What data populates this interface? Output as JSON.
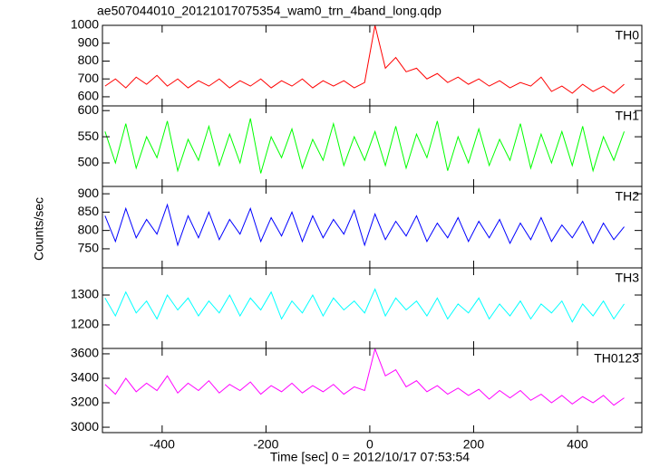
{
  "title": "ae507044010_20121017075354_wam0_trn_4band_long.qdp",
  "x_label": "Time [sec] 0 = 2012/10/17 07:53:54",
  "y_label": "Counts/sec",
  "xlim": [
    -515,
    524
  ],
  "xticks": [
    -400,
    -200,
    0,
    200,
    400
  ],
  "x": [
    -510,
    -490,
    -470,
    -450,
    -430,
    -410,
    -390,
    -370,
    -350,
    -330,
    -310,
    -290,
    -270,
    -250,
    -230,
    -210,
    -190,
    -170,
    -150,
    -130,
    -110,
    -90,
    -70,
    -50,
    -30,
    -10,
    10,
    30,
    50,
    70,
    90,
    110,
    130,
    150,
    170,
    190,
    210,
    230,
    250,
    270,
    290,
    310,
    330,
    350,
    370,
    390,
    410,
    430,
    450,
    470,
    490
  ],
  "chart_data": [
    {
      "type": "line",
      "label": "TH0",
      "color": "#ff0000",
      "ylim": [
        549,
        1000
      ],
      "yticks": [
        600,
        700,
        800,
        900,
        1000
      ],
      "values": [
        660,
        700,
        650,
        710,
        670,
        720,
        660,
        700,
        650,
        690,
        660,
        700,
        650,
        690,
        660,
        700,
        650,
        690,
        660,
        700,
        650,
        690,
        660,
        690,
        650,
        680,
        1000,
        760,
        820,
        740,
        760,
        700,
        730,
        680,
        710,
        670,
        700,
        660,
        690,
        650,
        680,
        660,
        710,
        630,
        660,
        620,
        670,
        630,
        660,
        620,
        670
      ]
    },
    {
      "type": "line",
      "label": "TH1",
      "color": "#00ff00",
      "ylim": [
        455,
        609
      ],
      "yticks": [
        500,
        550,
        600
      ],
      "values": [
        560,
        500,
        575,
        490,
        550,
        510,
        580,
        485,
        545,
        505,
        570,
        495,
        555,
        500,
        585,
        480,
        550,
        510,
        565,
        490,
        545,
        505,
        575,
        495,
        550,
        505,
        560,
        495,
        570,
        490,
        555,
        510,
        580,
        485,
        550,
        500,
        565,
        495,
        545,
        505,
        575,
        490,
        555,
        500,
        560,
        495,
        570,
        485,
        550,
        505,
        560
      ]
    },
    {
      "type": "line",
      "label": "TH2",
      "color": "#0000ff",
      "ylim": [
        698,
        920
      ],
      "yticks": [
        750,
        800,
        850,
        900
      ],
      "values": [
        840,
        770,
        860,
        780,
        830,
        790,
        870,
        760,
        840,
        780,
        850,
        775,
        830,
        790,
        860,
        770,
        835,
        785,
        850,
        770,
        840,
        780,
        830,
        790,
        855,
        760,
        845,
        775,
        825,
        785,
        840,
        770,
        820,
        780,
        835,
        770,
        825,
        780,
        830,
        765,
        820,
        775,
        835,
        770,
        815,
        780,
        825,
        765,
        820,
        775,
        810
      ]
    },
    {
      "type": "line",
      "label": "TH3",
      "color": "#00ffff",
      "ylim": [
        1121,
        1391
      ],
      "yticks": [
        1200,
        1300
      ],
      "values": [
        1290,
        1230,
        1310,
        1240,
        1280,
        1220,
        1300,
        1250,
        1290,
        1230,
        1280,
        1240,
        1300,
        1230,
        1290,
        1250,
        1310,
        1220,
        1280,
        1240,
        1300,
        1230,
        1290,
        1250,
        1280,
        1240,
        1320,
        1230,
        1290,
        1250,
        1280,
        1230,
        1290,
        1220,
        1270,
        1240,
        1290,
        1220,
        1270,
        1230,
        1280,
        1220,
        1270,
        1240,
        1280,
        1210,
        1270,
        1230,
        1280,
        1220,
        1270
      ]
    },
    {
      "type": "line",
      "label": "TH0123",
      "color": "#ff00ff",
      "ylim": [
        2956,
        3644
      ],
      "yticks": [
        3000,
        3200,
        3400,
        3600
      ],
      "values": [
        3350,
        3270,
        3400,
        3290,
        3360,
        3300,
        3420,
        3280,
        3360,
        3300,
        3380,
        3280,
        3350,
        3300,
        3370,
        3270,
        3340,
        3290,
        3360,
        3280,
        3340,
        3290,
        3350,
        3270,
        3330,
        3300,
        3640,
        3420,
        3470,
        3330,
        3380,
        3290,
        3340,
        3270,
        3320,
        3260,
        3310,
        3230,
        3300,
        3240,
        3300,
        3220,
        3270,
        3200,
        3260,
        3190,
        3250,
        3200,
        3260,
        3180,
        3240
      ]
    }
  ]
}
